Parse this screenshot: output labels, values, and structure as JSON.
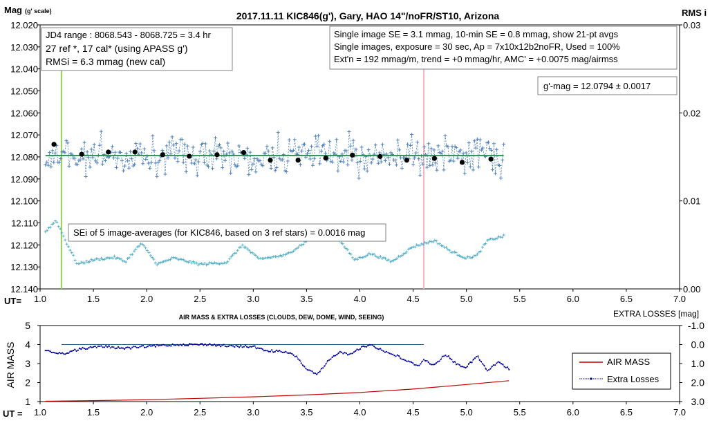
{
  "top_chart": {
    "title": "2017.11.11  KIC846(g'), Gary, HAO 14\"/noFR/ST10, Arizona",
    "y_label_main": "Mag",
    "y_label_sub": "(g' scale)",
    "y_right_label": "RMS i",
    "x_axis_label": "UT=",
    "y_ticks": [
      "12.020",
      "12.030",
      "12.040",
      "12.050",
      "12.060",
      "12.070",
      "12.080",
      "12.090",
      "12.100",
      "12.110",
      "12.120",
      "12.130",
      "12.140"
    ],
    "y_right_ticks": [
      "0.03",
      "0.02",
      "0.01",
      "0.00"
    ],
    "x_ticks": [
      "1.0",
      "1.5",
      "2.0",
      "2.5",
      "3.0",
      "3.5",
      "4.0",
      "4.5",
      "5.0",
      "5.5",
      "6.0",
      "6.5",
      "7.0"
    ],
    "box_left_lines": [
      "JD4 range : 8068.543 - 8068.725 = 3.4  hr",
      "27 ref *, 17 cal* (using APASS g')",
      "RMSi = 6.3 mmag (new cal)"
    ],
    "box_right_lines": [
      "Single image SE = 3.1 mmag, 10-min SE = 0.8 mmag, show  21-pt avgs",
      "Single images, exposure = 30 sec, Ap = 7x10x12b2noFR,  Used = 100%",
      "Ext'n = 192 mmag/m, trend =  +0 mmag/hr, AMC' = +0.0075 mag/airmss"
    ],
    "box_mag": "g'-mag = 12.0794 ± 0.0017",
    "box_sei": "SEi of 5 image-averages (for KIC846, based on 3 ref stars) = 0.0016  mag"
  },
  "bottom_chart": {
    "title": "AIR MASS & EXTRA LOSSES (CLOUDS, DEW, DOME, WIND, SEEING)",
    "y_left_label": "AIR MASS",
    "y_right_label": "EXTRA LOSSES [mag]",
    "x_axis_label": "UT =",
    "y_left_ticks": [
      "5",
      "4",
      "3",
      "2",
      "1"
    ],
    "y_right_ticks": [
      "-1.0",
      "0.0",
      "1.0",
      "2.0",
      "3.0"
    ],
    "x_ticks": [
      "1.0",
      "1.5",
      "2.0",
      "2.5",
      "3.0",
      "3.5",
      "4.0",
      "4.5",
      "5.0",
      "5.5",
      "6.0",
      "6.5",
      "7.0"
    ],
    "legend": [
      "AIR MASS",
      "Extra Losses"
    ]
  },
  "colors": {
    "single_points": "#4f81bd",
    "avg_points": "#000000",
    "fit_line": "#2e8b57",
    "rms_points": "#4bacc6",
    "green_marker": "#92d050",
    "pink_marker": "#f4b6c2",
    "air_mass": "#c00000",
    "extra_losses": "#0000a0",
    "zero_line": "#1f5f7f"
  },
  "chart_data": [
    {
      "type": "scatter",
      "title": "2017.11.11  KIC846(g'), Gary, HAO 14\"/noFR/ST10, Arizona",
      "xlabel": "UT=",
      "ylabel": "Mag (g' scale)",
      "xlim": [
        1.0,
        7.0
      ],
      "ylim": [
        12.14,
        12.02
      ],
      "y2label": "RMS i",
      "y2lim": [
        0.0,
        0.03
      ],
      "vertical_markers": [
        1.2,
        4.6
      ],
      "series": [
        {
          "name": "single images",
          "x_range": [
            1.05,
            5.35
          ],
          "mean": 12.0794,
          "spread": 0.006
        },
        {
          "name": "21-pt avgs",
          "x": [
            1.13,
            1.39,
            1.64,
            1.89,
            2.15,
            2.4,
            2.66,
            2.91,
            3.16,
            3.42,
            3.68,
            3.93,
            4.19,
            4.44,
            4.7,
            4.96,
            5.23
          ],
          "y": [
            12.0743,
            12.0788,
            12.0778,
            12.0778,
            12.079,
            12.0797,
            12.079,
            12.078,
            12.0815,
            12.0815,
            12.0805,
            12.0792,
            12.0798,
            12.0815,
            12.0807,
            12.0825,
            12.081
          ]
        },
        {
          "name": "fit",
          "x": [
            1.05,
            5.35
          ],
          "y": [
            12.0794,
            12.0794
          ]
        },
        {
          "name": "RMS i",
          "x": [
            1.05,
            1.15,
            1.25,
            1.35,
            1.5,
            1.7,
            1.8,
            1.95,
            2.1,
            2.25,
            2.5,
            2.75,
            2.9,
            3.05,
            3.3,
            3.55,
            3.65,
            3.8,
            3.95,
            4.1,
            4.3,
            4.5,
            4.7,
            4.85,
            5.0,
            5.1,
            5.2,
            5.35
          ],
          "y": [
            0.0065,
            0.0078,
            0.0052,
            0.0028,
            0.0033,
            0.0036,
            0.0031,
            0.0052,
            0.0028,
            0.0035,
            0.0028,
            0.003,
            0.005,
            0.0034,
            0.0038,
            0.0058,
            0.0063,
            0.0057,
            0.0033,
            0.004,
            0.0031,
            0.0048,
            0.0055,
            0.0043,
            0.0035,
            0.0038,
            0.0055,
            0.006
          ]
        }
      ],
      "annotations": [
        "g'-mag = 12.0794 ± 0.0017"
      ]
    },
    {
      "type": "line",
      "title": "AIR MASS & EXTRA LOSSES (CLOUDS, DEW, DOME, WIND, SEEING)",
      "xlabel": "UT =",
      "ylabel": "AIR MASS",
      "xlim": [
        1.0,
        7.0
      ],
      "ylim": [
        1,
        5
      ],
      "y2label": "EXTRA LOSSES [mag]",
      "y2lim": [
        3.0,
        -1.0
      ],
      "legend_position": "right",
      "series": [
        {
          "name": "AIR MASS",
          "x": [
            1.05,
            1.5,
            2.0,
            2.5,
            3.0,
            3.5,
            4.0,
            4.5,
            5.0,
            5.4
          ],
          "y": [
            1.02,
            1.05,
            1.1,
            1.17,
            1.25,
            1.35,
            1.48,
            1.66,
            1.9,
            2.1
          ]
        },
        {
          "name": "Extra Losses",
          "x": [
            1.05,
            1.2,
            1.4,
            1.6,
            1.8,
            2.0,
            2.3,
            2.6,
            2.8,
            3.0,
            3.1,
            3.3,
            3.4,
            3.5,
            3.6,
            3.7,
            3.8,
            3.9,
            4.0,
            4.1,
            4.25,
            4.35,
            4.45,
            4.55,
            4.6,
            4.7,
            4.8,
            4.9,
            5.0,
            5.1,
            5.2,
            5.3,
            5.4
          ],
          "y": [
            0.3,
            0.5,
            0.2,
            0.1,
            0.2,
            0.1,
            0.0,
            0.0,
            0.1,
            0.1,
            0.3,
            0.4,
            0.6,
            1.3,
            1.6,
            0.9,
            0.4,
            0.5,
            0.2,
            0.0,
            0.4,
            0.6,
            0.9,
            1.1,
            0.8,
            1.1,
            0.5,
            1.0,
            1.2,
            0.6,
            1.4,
            0.9,
            1.3
          ]
        },
        {
          "name": "zero",
          "x": [
            1.2,
            4.6
          ],
          "y": [
            0.0,
            0.0
          ]
        }
      ]
    }
  ]
}
